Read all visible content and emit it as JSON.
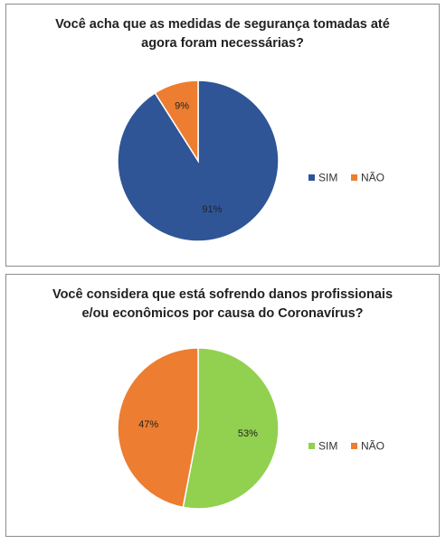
{
  "chart_data": [
    {
      "type": "pie",
      "title_lines": [
        "Você acha que as medidas de segurança tomadas até",
        "agora foram necessárias?"
      ],
      "categories": [
        "SIM",
        "NÃO"
      ],
      "values": [
        91,
        9
      ],
      "labels": [
        "91%",
        "9%"
      ],
      "colors": [
        "#2f5597",
        "#ed7d31"
      ],
      "legend_position": "right"
    },
    {
      "type": "pie",
      "title_lines": [
        "Você considera que está sofrendo danos profissionais",
        "e/ou econômicos por causa do Coronavírus?"
      ],
      "categories": [
        "SIM",
        "NÃO"
      ],
      "values": [
        53,
        47
      ],
      "labels": [
        "53%",
        "47%"
      ],
      "colors": [
        "#92d050",
        "#ed7d31"
      ],
      "legend_position": "right"
    }
  ]
}
